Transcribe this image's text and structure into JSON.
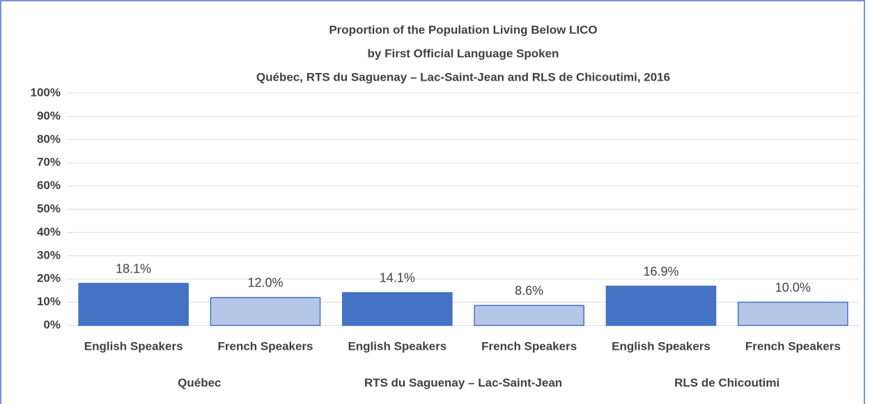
{
  "chart_data": {
    "type": "bar",
    "title": [
      "Proportion of the Population Living Below LICO",
      "by First Official Language Spoken",
      "Québec, RTS du Saguenay – Lac-Saint-Jean and RLS de Chicoutimi, 2016"
    ],
    "categories": [
      "English Speakers",
      "French Speakers",
      "English Speakers",
      "French Speakers",
      "English Speakers",
      "French Speakers"
    ],
    "groups": [
      "Québec",
      "RTS du Saguenay – Lac-Saint-Jean",
      "RLS de Chicoutimi"
    ],
    "values": [
      18.1,
      12.0,
      14.1,
      8.6,
      16.9,
      10.0
    ],
    "value_labels": [
      "18.1%",
      "12.0%",
      "14.1%",
      "8.6%",
      "16.9%",
      "10.0%"
    ],
    "colors": [
      "#4472c4",
      "#b4c7e7",
      "#4472c4",
      "#b4c7e7",
      "#4472c4",
      "#b4c7e7"
    ],
    "edgecolor": "#4472c4",
    "ylim": [
      0,
      100
    ],
    "yticks": [
      {
        "value": 0,
        "label": "0%"
      },
      {
        "value": 10,
        "label": "10%"
      },
      {
        "value": 20,
        "label": "20%"
      },
      {
        "value": 30,
        "label": "30%"
      },
      {
        "value": 40,
        "label": "40%"
      },
      {
        "value": 50,
        "label": "50%"
      },
      {
        "value": 60,
        "label": "60%"
      },
      {
        "value": 70,
        "label": "70%"
      },
      {
        "value": 80,
        "label": "80%"
      },
      {
        "value": 90,
        "label": "90%"
      },
      {
        "value": 100,
        "label": "100%"
      }
    ],
    "grid": true
  }
}
